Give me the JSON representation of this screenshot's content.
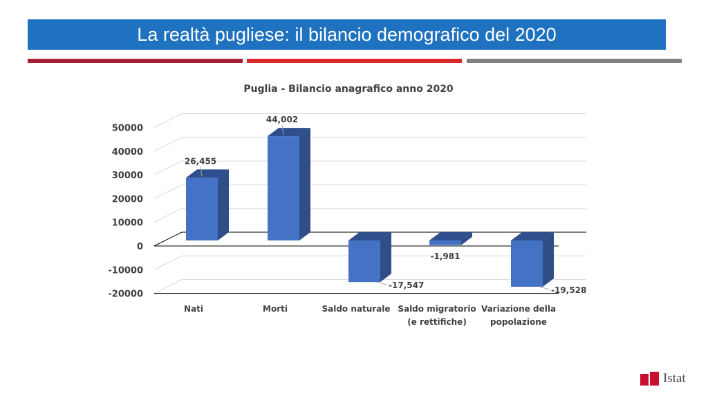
{
  "slide": {
    "title": "La realtà pugliese: il bilancio demografico del 2020",
    "colors": {
      "title_bg": "#1f72c0",
      "rule_1": "#a41e34",
      "rule_2": "#d9262a",
      "rule_3": "#808080",
      "bar": "#4472c4",
      "logo": "#c8102e"
    },
    "logo_text": "Istat"
  },
  "chart_data": {
    "type": "bar",
    "title": "Puglia - Bilancio anagrafico anno 2020",
    "categories": [
      "Nati",
      "Morti",
      "Saldo naturale",
      "Saldo migratorio (e rettifiche)",
      "Variazione della popolazione"
    ],
    "category_lines": [
      [
        "Nati"
      ],
      [
        "Morti"
      ],
      [
        "Saldo naturale"
      ],
      [
        "Saldo migratorio",
        "(e rettifiche)"
      ],
      [
        "Variazione della",
        "popolazione"
      ]
    ],
    "values": [
      26455,
      44002,
      -17547,
      -1981,
      -19528
    ],
    "data_labels": [
      "26,455",
      "44,002",
      "-17,547",
      "-1,981",
      "-19,528"
    ],
    "yticks": [
      50000,
      40000,
      30000,
      20000,
      10000,
      0,
      -10000,
      -20000
    ],
    "ylim": [
      -20000,
      50000
    ],
    "grid": true,
    "legend": "none",
    "style": "3d-column"
  }
}
